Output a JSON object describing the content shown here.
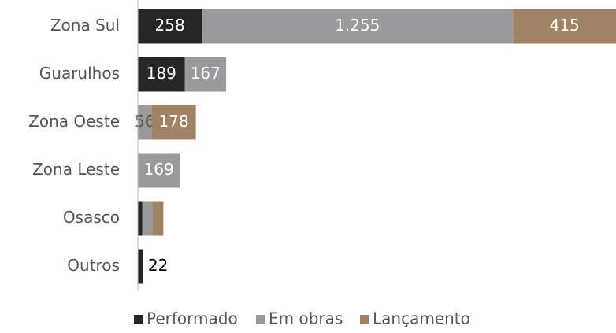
{
  "chart_data": {
    "type": "stacked_barh",
    "categories": [
      "Zona Sul",
      "Guarulhos",
      "Zona Oeste",
      "Zona Leste",
      "Osasco",
      "Outros"
    ],
    "series": [
      {
        "name": "Performado",
        "color": "#262626",
        "values": [
          258,
          189,
          null,
          null,
          18,
          22
        ],
        "value_labels": [
          "258",
          "189",
          null,
          null,
          null,
          "22"
        ]
      },
      {
        "name": "Em obras",
        "color": "#9a9a9c",
        "values": [
          1255,
          167,
          56,
          169,
          40,
          null
        ],
        "value_labels": [
          "1.255",
          "167",
          "56",
          "169",
          null,
          null
        ]
      },
      {
        "name": "Lançamento",
        "color": "#a08264",
        "values": [
          415,
          null,
          178,
          null,
          45,
          null
        ],
        "value_labels": [
          "415",
          null,
          "178",
          null,
          null,
          null
        ]
      }
    ],
    "xlim": [
      0,
      1928
    ],
    "legend": "bottom"
  }
}
